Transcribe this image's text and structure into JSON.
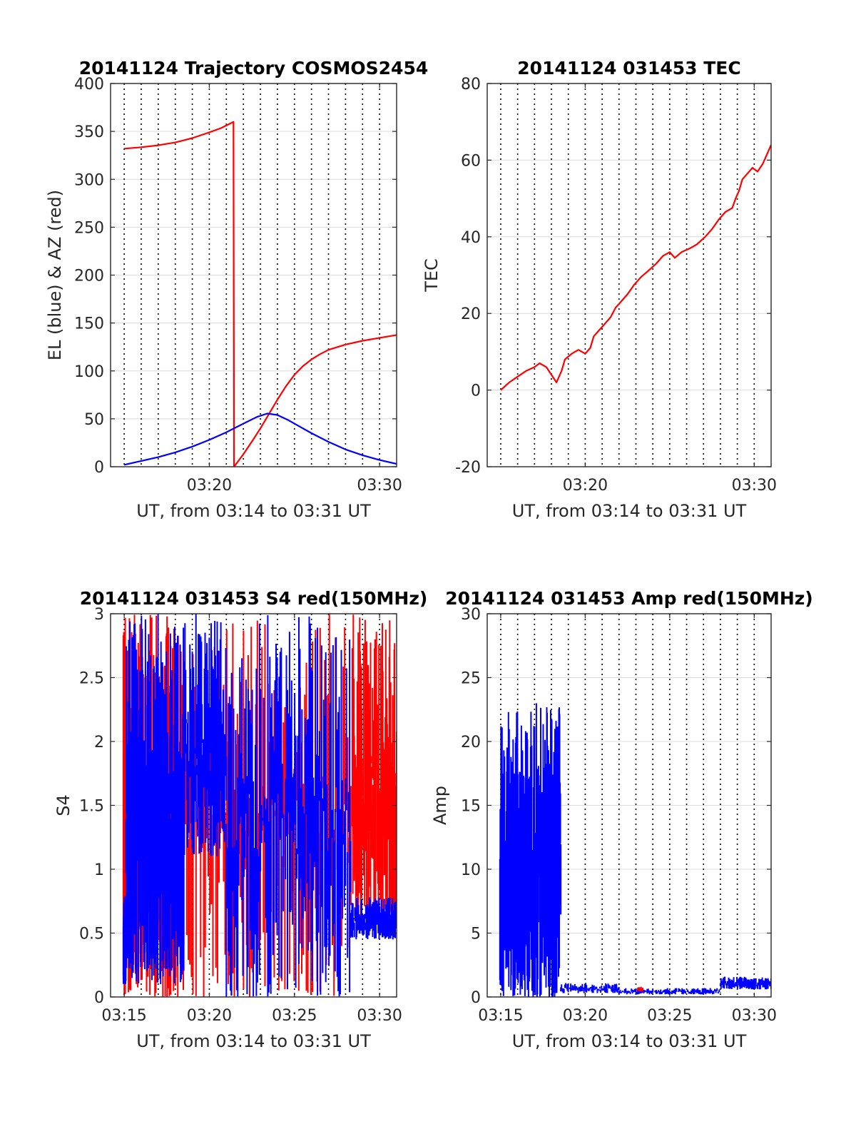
{
  "colors": {
    "red": "#ff0000",
    "blue": "#0000ff",
    "axis": "#262626",
    "grid": "#dcdcdc"
  },
  "chart_data": [
    {
      "type": "line",
      "title": "20141124 Trajectory COSMOS2454",
      "xlabel": "UT, from 03:14 to 03:31 UT",
      "ylabel": "EL (blue) & AZ (red)",
      "xlim": [
        14.2,
        31.0
      ],
      "ylim": [
        0,
        400
      ],
      "yticks": [
        0,
        50,
        100,
        150,
        200,
        250,
        300,
        350,
        400
      ],
      "xticks": [
        {
          "v": 20,
          "label": "03:20"
        },
        {
          "v": 30,
          "label": "03:30"
        }
      ],
      "grid": true,
      "series": [
        {
          "color": "red",
          "segments": [
            [
              [
                15.0,
                332
              ],
              [
                16.0,
                333.5
              ],
              [
                17.0,
                335.5
              ],
              [
                18.0,
                338.5
              ],
              [
                19.0,
                343
              ],
              [
                20.0,
                349
              ],
              [
                20.7,
                353.5
              ],
              [
                21.2,
                358
              ],
              [
                21.42,
                360
              ],
              [
                21.45,
                0
              ]
            ],
            [
              [
                21.45,
                0
              ],
              [
                22.0,
                13
              ],
              [
                22.6,
                29
              ],
              [
                23.0,
                40
              ],
              [
                23.5,
                55
              ],
              [
                24.0,
                70
              ],
              [
                24.5,
                84
              ],
              [
                25.0,
                96
              ],
              [
                25.5,
                105
              ],
              [
                26.0,
                112
              ],
              [
                26.5,
                117.5
              ],
              [
                27.0,
                122
              ],
              [
                28.0,
                127.5
              ],
              [
                29.0,
                131.5
              ],
              [
                30.0,
                134.5
              ],
              [
                31.0,
                137.5
              ]
            ]
          ]
        },
        {
          "color": "blue",
          "segments": [
            [
              [
                15.0,
                2
              ],
              [
                16.0,
                6
              ],
              [
                17.0,
                10
              ],
              [
                18.0,
                15
              ],
              [
                19.0,
                21
              ],
              [
                20.0,
                28
              ],
              [
                21.0,
                36
              ],
              [
                22.0,
                45
              ],
              [
                22.8,
                52
              ],
              [
                23.4,
                55.5
              ],
              [
                24.0,
                54
              ],
              [
                24.6,
                49
              ],
              [
                25.2,
                43
              ],
              [
                26.0,
                35
              ],
              [
                27.0,
                26
              ],
              [
                28.0,
                18
              ],
              [
                29.0,
                12
              ],
              [
                30.0,
                7
              ],
              [
                31.0,
                3
              ]
            ]
          ]
        }
      ]
    },
    {
      "type": "line",
      "title": "20141124 031453 TEC",
      "xlabel": "UT, from 03:14 to 03:31 UT",
      "ylabel": "TEC",
      "xlim": [
        14.2,
        31.0
      ],
      "ylim": [
        -20,
        80
      ],
      "yticks": [
        -20,
        0,
        20,
        40,
        60,
        80
      ],
      "xticks": [
        {
          "v": 20,
          "label": "03:20"
        },
        {
          "v": 30,
          "label": "03:30"
        }
      ],
      "grid": true,
      "series": [
        {
          "color": "red",
          "segments": [
            [
              [
                15.0,
                0
              ],
              [
                15.5,
                2
              ],
              [
                16.0,
                3.5
              ],
              [
                16.5,
                5
              ],
              [
                17.0,
                6
              ],
              [
                17.3,
                7
              ],
              [
                17.7,
                6
              ],
              [
                18.0,
                4
              ],
              [
                18.3,
                2
              ],
              [
                18.6,
                5
              ],
              [
                18.8,
                8
              ],
              [
                19.2,
                9.5
              ],
              [
                19.6,
                10.5
              ],
              [
                20.0,
                9.5
              ],
              [
                20.3,
                11
              ],
              [
                20.5,
                14
              ],
              [
                21.0,
                16.5
              ],
              [
                21.5,
                19
              ],
              [
                21.8,
                21.5
              ],
              [
                22.1,
                23
              ],
              [
                22.5,
                25
              ],
              [
                22.9,
                27.5
              ],
              [
                23.3,
                29.5
              ],
              [
                23.7,
                31
              ],
              [
                24.2,
                33
              ],
              [
                24.6,
                35
              ],
              [
                25.0,
                36
              ],
              [
                25.3,
                34.5
              ],
              [
                25.7,
                36
              ],
              [
                26.2,
                37
              ],
              [
                26.6,
                38
              ],
              [
                27.1,
                40
              ],
              [
                27.5,
                42
              ],
              [
                27.9,
                44.5
              ],
              [
                28.3,
                46.5
              ],
              [
                28.7,
                47.5
              ],
              [
                28.9,
                50
              ],
              [
                29.1,
                52
              ],
              [
                29.3,
                55
              ],
              [
                29.6,
                56.5
              ],
              [
                29.9,
                58
              ],
              [
                30.2,
                57
              ],
              [
                30.5,
                59
              ],
              [
                30.8,
                62
              ],
              [
                31.0,
                64
              ]
            ]
          ]
        }
      ]
    },
    {
      "type": "line",
      "title": "20141124 031453 S4 red(150MHz)",
      "xlabel": "UT, from 03:14 to 03:31 UT",
      "ylabel": "S4",
      "xlim": [
        14.2,
        31.0
      ],
      "ylim": [
        0,
        3
      ],
      "yticks": [
        0,
        0.5,
        1,
        1.5,
        2,
        2.5,
        3
      ],
      "yticklabels": [
        "0",
        "0.5",
        "1",
        "1.5",
        "2",
        "2.5",
        "3"
      ],
      "xticks": [
        {
          "v": 15,
          "label": "03:15"
        },
        {
          "v": 20,
          "label": "03:20"
        },
        {
          "v": 25,
          "label": "03:25"
        },
        {
          "v": 30,
          "label": "03:30"
        }
      ],
      "grid": true,
      "series": [
        {
          "color": "red",
          "kind": "noise",
          "seed": 7,
          "bands": [
            {
              "from": 14.95,
              "to": 18.5,
              "lo": 0.0,
              "hi": 3.0,
              "density": 130
            },
            {
              "from": 18.5,
              "to": 28.4,
              "lo": 0.0,
              "hi": 3.0,
              "density": 110
            },
            {
              "from": 28.4,
              "to": 31.0,
              "lo": 0.6,
              "hi": 3.0,
              "density": 90
            }
          ]
        },
        {
          "color": "blue",
          "kind": "noise",
          "seed": 13,
          "bands": [
            {
              "from": 14.95,
              "to": 15.1,
              "lo": 0.1,
              "hi": 0.8,
              "density": 60
            },
            {
              "from": 15.1,
              "to": 18.5,
              "lo": 0.1,
              "hi": 3.0,
              "density": 160
            },
            {
              "from": 18.5,
              "to": 21.0,
              "lo": 1.1,
              "hi": 3.0,
              "density": 70
            },
            {
              "from": 21.0,
              "to": 28.3,
              "lo": 0.0,
              "hi": 3.0,
              "density": 120
            },
            {
              "from": 28.3,
              "to": 31.0,
              "lo": 0.45,
              "hi": 0.78,
              "density": 100
            }
          ]
        }
      ]
    },
    {
      "type": "line",
      "title": "20141124 031453 Amp red(150MHz)",
      "xlabel": "UT, from 03:14 to 03:31 UT",
      "ylabel": "Amp",
      "xlim": [
        14.2,
        31.0
      ],
      "ylim": [
        0,
        30
      ],
      "yticks": [
        0,
        5,
        10,
        15,
        20,
        25,
        30
      ],
      "xticks": [
        {
          "v": 15,
          "label": "03:15"
        },
        {
          "v": 20,
          "label": "03:20"
        },
        {
          "v": 25,
          "label": "03:25"
        },
        {
          "v": 30,
          "label": "03:30"
        }
      ],
      "grid": true,
      "series": [
        {
          "color": "red",
          "kind": "noise",
          "seed": 3,
          "bands": [
            {
              "from": 23.1,
              "to": 23.4,
              "lo": 0.3,
              "hi": 0.8,
              "density": 20
            }
          ]
        },
        {
          "color": "blue",
          "kind": "noise",
          "seed": 21,
          "bands": [
            {
              "from": 14.95,
              "to": 18.55,
              "lo": 0.0,
              "hi": 23.0,
              "density": 170
            },
            {
              "from": 18.55,
              "to": 22.0,
              "lo": 0.3,
              "hi": 1.1,
              "density": 70
            },
            {
              "from": 22.0,
              "to": 28.0,
              "lo": 0.2,
              "hi": 0.7,
              "density": 90
            },
            {
              "from": 28.0,
              "to": 31.0,
              "lo": 0.6,
              "hi": 1.6,
              "density": 80
            }
          ]
        }
      ]
    }
  ]
}
